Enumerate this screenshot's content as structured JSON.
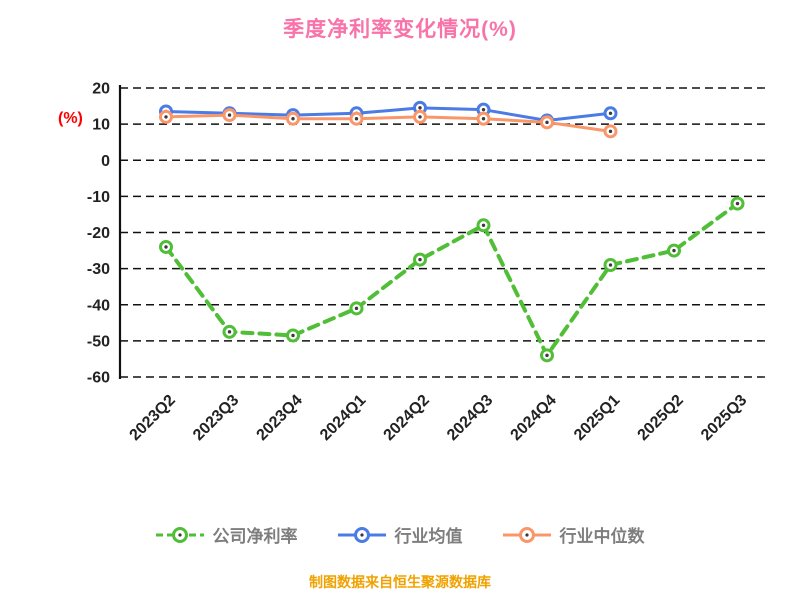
{
  "title": "季度净利率变化情况(%)",
  "footer": "制图数据来自恒生聚源数据库",
  "colors": {
    "title": "#F873A9",
    "footer": "#F0A200",
    "ylabel": "#FF0000",
    "axis": "#111111",
    "tick_label": "#222222",
    "legend_text": "#7E7E7E",
    "marker_center": "#3A3A3A"
  },
  "chart_data": {
    "type": "line",
    "title": "季度净利率变化情况(%)",
    "ylabel": "(%)",
    "xlabel": "",
    "categories": [
      "2023Q2",
      "2023Q3",
      "2023Q4",
      "2024Q1",
      "2024Q2",
      "2024Q3",
      "2024Q4",
      "2025Q1",
      "2025Q2",
      "2025Q3"
    ],
    "series": [
      {
        "name": "公司净利率",
        "color": "#50BE37",
        "dash": true,
        "values": [
          -24,
          -47.5,
          -48.5,
          -41,
          -27.5,
          -18,
          -54,
          -29,
          -25,
          -12
        ]
      },
      {
        "name": "行业均值",
        "color": "#4B7BE5",
        "dash": false,
        "values": [
          13.5,
          13,
          12.5,
          13,
          14.5,
          14,
          11,
          13,
          null,
          null
        ]
      },
      {
        "name": "行业中位数",
        "color": "#F9976B",
        "dash": false,
        "values": [
          12,
          12.5,
          11.5,
          11.5,
          12,
          11.5,
          10.5,
          8,
          null,
          null
        ]
      }
    ],
    "ylim": [
      -60,
      20
    ],
    "yticks": [
      20,
      10,
      0,
      -10,
      -20,
      -30,
      -40,
      -50,
      -60
    ],
    "grid": "horizontal-dashed",
    "legend_position": "bottom"
  }
}
